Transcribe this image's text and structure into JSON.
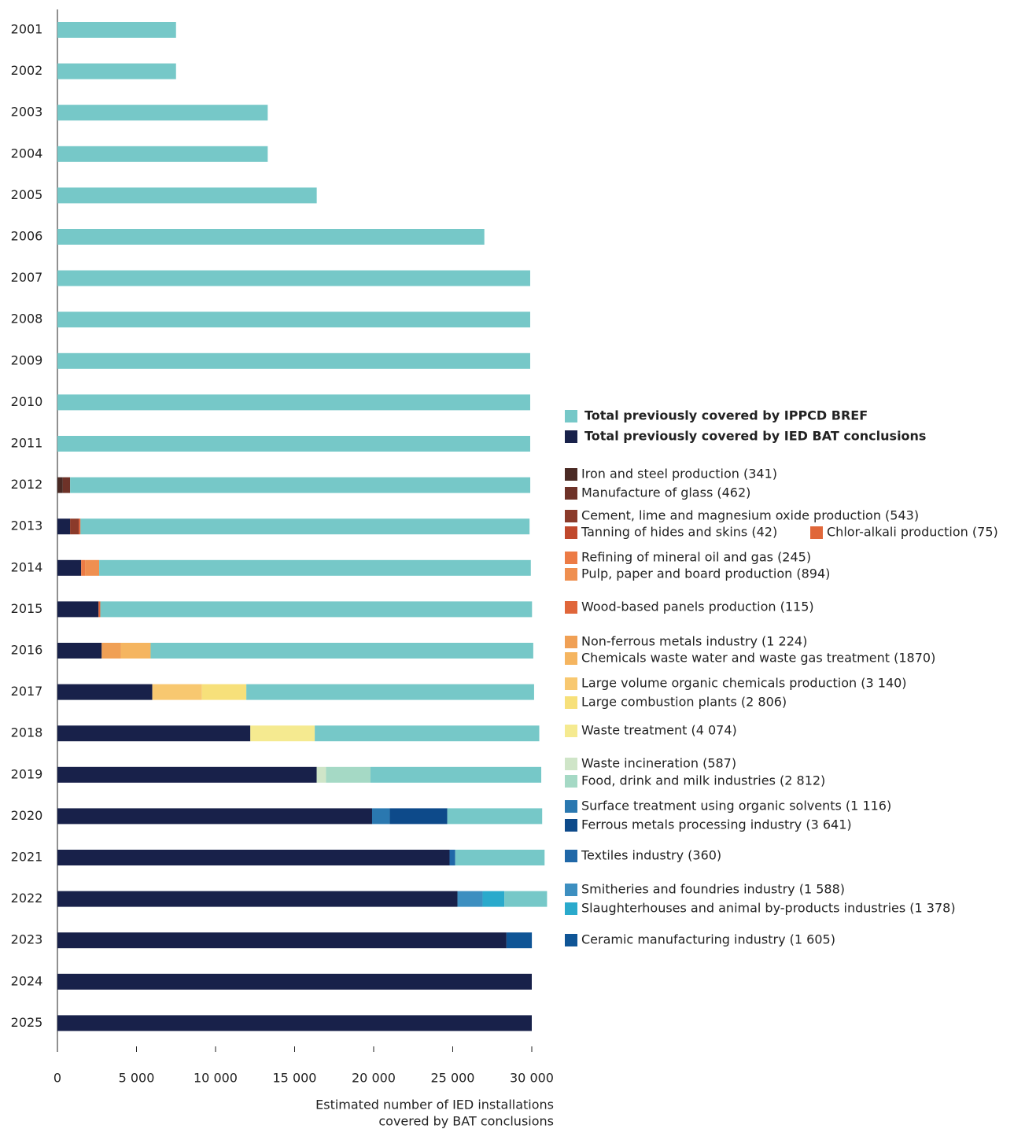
{
  "chart_data": {
    "type": "stacked-bar-horizontal",
    "categories": [
      "2001",
      "2002",
      "2003",
      "2004",
      "2005",
      "2006",
      "2007",
      "2008",
      "2009",
      "2010",
      "2011",
      "2012",
      "2013",
      "2014",
      "2015",
      "2016",
      "2017",
      "2018",
      "2019",
      "2020",
      "2021",
      "2022",
      "2023",
      "2024",
      "2025"
    ],
    "xlim": [
      0,
      30000
    ],
    "xticks": [
      0,
      {
        "value": 5000,
        "label": "5 000"
      },
      {
        "value": 10000,
        "label": "10 000"
      },
      {
        "value": 15000,
        "label": "15 000"
      },
      {
        "value": 20000,
        "label": "20 000"
      },
      {
        "value": 25000,
        "label": "25 000"
      },
      {
        "value": 30000,
        "label": "30 000"
      }
    ],
    "xlabel": [
      "Estimated number of IED installations",
      "covered by BAT conclusions"
    ],
    "series": [
      {
        "name": "Total previously covered by IPPCD BREF",
        "color": "#76c8c8",
        "values": [
          7500,
          7500,
          13300,
          13300,
          16400,
          27000,
          29900,
          29900,
          29900,
          29900,
          29900,
          29100,
          28400,
          27300,
          27300,
          24200,
          18200,
          14200,
          10800,
          6000,
          5650,
          2700,
          null,
          null,
          null
        ]
      },
      {
        "name": "Total previously covered by IED BAT conclusions",
        "color": "#18214a",
        "values": [
          null,
          null,
          null,
          null,
          null,
          null,
          null,
          null,
          null,
          null,
          null,
          null,
          800,
          1500,
          2600,
          2800,
          6000,
          12200,
          16400,
          19900,
          24800,
          25300,
          28400,
          30000,
          30000
        ]
      },
      {
        "name": "Iron and steel production (341)",
        "color": "#4a2a24",
        "values": [
          null,
          null,
          null,
          null,
          null,
          null,
          null,
          null,
          null,
          null,
          null,
          341,
          null,
          null,
          null,
          null,
          null,
          null,
          null,
          null,
          null,
          null,
          null,
          null,
          null
        ]
      },
      {
        "name": "Manufacture of glass (462)",
        "color": "#6e3228",
        "values": [
          null,
          null,
          null,
          null,
          null,
          null,
          null,
          null,
          null,
          null,
          null,
          462,
          null,
          null,
          null,
          null,
          null,
          null,
          null,
          null,
          null,
          null,
          null,
          null,
          null
        ]
      },
      {
        "name": "Cement, lime and magnesium oxide production (543)",
        "color": "#8b3a2a",
        "values": [
          null,
          null,
          null,
          null,
          null,
          null,
          null,
          null,
          null,
          null,
          null,
          null,
          543,
          null,
          null,
          null,
          null,
          null,
          null,
          null,
          null,
          null,
          null,
          null,
          null
        ]
      },
      {
        "name": "Tanning of hides and skins (42)",
        "color": "#c0482c",
        "values": [
          null,
          null,
          null,
          null,
          null,
          null,
          null,
          null,
          null,
          null,
          null,
          null,
          42,
          null,
          null,
          null,
          null,
          null,
          null,
          null,
          null,
          null,
          null,
          null,
          null
        ]
      },
      {
        "name": "Chlor-alkali production (75)",
        "color": "#e0673a",
        "values": [
          null,
          null,
          null,
          null,
          null,
          null,
          null,
          null,
          null,
          null,
          null,
          null,
          75,
          null,
          null,
          null,
          null,
          null,
          null,
          null,
          null,
          null,
          null,
          null,
          null
        ]
      },
      {
        "name": "Refining of mineral oil and gas (245)",
        "color": "#ec7b45",
        "values": [
          null,
          null,
          null,
          null,
          null,
          null,
          null,
          null,
          null,
          null,
          null,
          null,
          null,
          245,
          null,
          null,
          null,
          null,
          null,
          null,
          null,
          null,
          null,
          null,
          null
        ]
      },
      {
        "name": "Pulp, paper and board production (894)",
        "color": "#ef8f50",
        "values": [
          null,
          null,
          null,
          null,
          null,
          null,
          null,
          null,
          null,
          null,
          null,
          null,
          null,
          894,
          null,
          null,
          null,
          null,
          null,
          null,
          null,
          null,
          null,
          null,
          null
        ]
      },
      {
        "name": "Wood-based panels production (115)",
        "color": "#e0663a",
        "values": [
          null,
          null,
          null,
          null,
          null,
          null,
          null,
          null,
          null,
          null,
          null,
          null,
          null,
          null,
          115,
          null,
          null,
          null,
          null,
          null,
          null,
          null,
          null,
          null,
          null
        ]
      },
      {
        "name": "Non-ferrous metals industry (1 224)",
        "color": "#f0a055",
        "values": [
          null,
          null,
          null,
          null,
          null,
          null,
          null,
          null,
          null,
          null,
          null,
          null,
          null,
          null,
          null,
          1224,
          null,
          null,
          null,
          null,
          null,
          null,
          null,
          null,
          null
        ]
      },
      {
        "name": "Chemicals waste water and waste gas treatment (1870)",
        "color": "#f5b560",
        "values": [
          null,
          null,
          null,
          null,
          null,
          null,
          null,
          null,
          null,
          null,
          null,
          null,
          null,
          null,
          null,
          1870,
          null,
          null,
          null,
          null,
          null,
          null,
          null,
          null,
          null
        ]
      },
      {
        "name": "Large volume organic chemicals production (3 140)",
        "color": "#f8c870",
        "values": [
          null,
          null,
          null,
          null,
          null,
          null,
          null,
          null,
          null,
          null,
          null,
          null,
          null,
          null,
          null,
          null,
          3140,
          null,
          null,
          null,
          null,
          null,
          null,
          null,
          null
        ]
      },
      {
        "name": "Large combustion plants (2 806)",
        "color": "#f7e07a",
        "values": [
          null,
          null,
          null,
          null,
          null,
          null,
          null,
          null,
          null,
          null,
          null,
          null,
          null,
          null,
          null,
          null,
          2806,
          null,
          null,
          null,
          null,
          null,
          null,
          null,
          null
        ]
      },
      {
        "name": "Waste treatment (4 074)",
        "color": "#f5ea90",
        "values": [
          null,
          null,
          null,
          null,
          null,
          null,
          null,
          null,
          null,
          null,
          null,
          null,
          null,
          null,
          null,
          null,
          null,
          4074,
          null,
          null,
          null,
          null,
          null,
          null,
          null
        ]
      },
      {
        "name": "Waste incineration (587)",
        "color": "#cfe5c8",
        "values": [
          null,
          null,
          null,
          null,
          null,
          null,
          null,
          null,
          null,
          null,
          null,
          null,
          null,
          null,
          null,
          null,
          null,
          null,
          587,
          null,
          null,
          null,
          null,
          null,
          null
        ]
      },
      {
        "name": "Food, drink and milk industries (2 812)",
        "color": "#a5d9c5",
        "values": [
          null,
          null,
          null,
          null,
          null,
          null,
          null,
          null,
          null,
          null,
          null,
          null,
          null,
          null,
          null,
          null,
          null,
          null,
          2812,
          null,
          null,
          null,
          null,
          null,
          null
        ]
      },
      {
        "name": "Surface treatment using organic solvents (1 116)",
        "color": "#2a78b0",
        "values": [
          null,
          null,
          null,
          null,
          null,
          null,
          null,
          null,
          null,
          null,
          null,
          null,
          null,
          null,
          null,
          null,
          null,
          null,
          null,
          1116,
          null,
          null,
          null,
          null,
          null
        ]
      },
      {
        "name": "Ferrous metals processing industry (3 641)",
        "color": "#0d4a8a",
        "values": [
          null,
          null,
          null,
          null,
          null,
          null,
          null,
          null,
          null,
          null,
          null,
          null,
          null,
          null,
          null,
          null,
          null,
          null,
          null,
          3641,
          null,
          null,
          null,
          null,
          null
        ]
      },
      {
        "name": "Textiles industry (360)",
        "color": "#2068a8",
        "values": [
          null,
          null,
          null,
          null,
          null,
          null,
          null,
          null,
          null,
          null,
          null,
          null,
          null,
          null,
          null,
          null,
          null,
          null,
          null,
          null,
          360,
          null,
          null,
          null,
          null
        ]
      },
      {
        "name": "Smitheries and foundries industry (1 588)",
        "color": "#3d8fc0",
        "values": [
          null,
          null,
          null,
          null,
          null,
          null,
          null,
          null,
          null,
          null,
          null,
          null,
          null,
          null,
          null,
          null,
          null,
          null,
          null,
          null,
          null,
          1588,
          null,
          null,
          null
        ]
      },
      {
        "name": "Slaughterhouses and animal by-products industries (1 378)",
        "color": "#2aaacc",
        "values": [
          null,
          null,
          null,
          null,
          null,
          null,
          null,
          null,
          null,
          null,
          null,
          null,
          null,
          null,
          null,
          null,
          null,
          null,
          null,
          null,
          null,
          1378,
          null,
          null,
          null
        ]
      },
      {
        "name": "Ceramic manufacturing industry (1 605)",
        "color": "#0f5596",
        "values": [
          null,
          null,
          null,
          null,
          null,
          null,
          null,
          null,
          null,
          null,
          null,
          null,
          null,
          null,
          null,
          null,
          null,
          null,
          null,
          null,
          null,
          null,
          1605,
          null,
          null
        ]
      }
    ]
  }
}
